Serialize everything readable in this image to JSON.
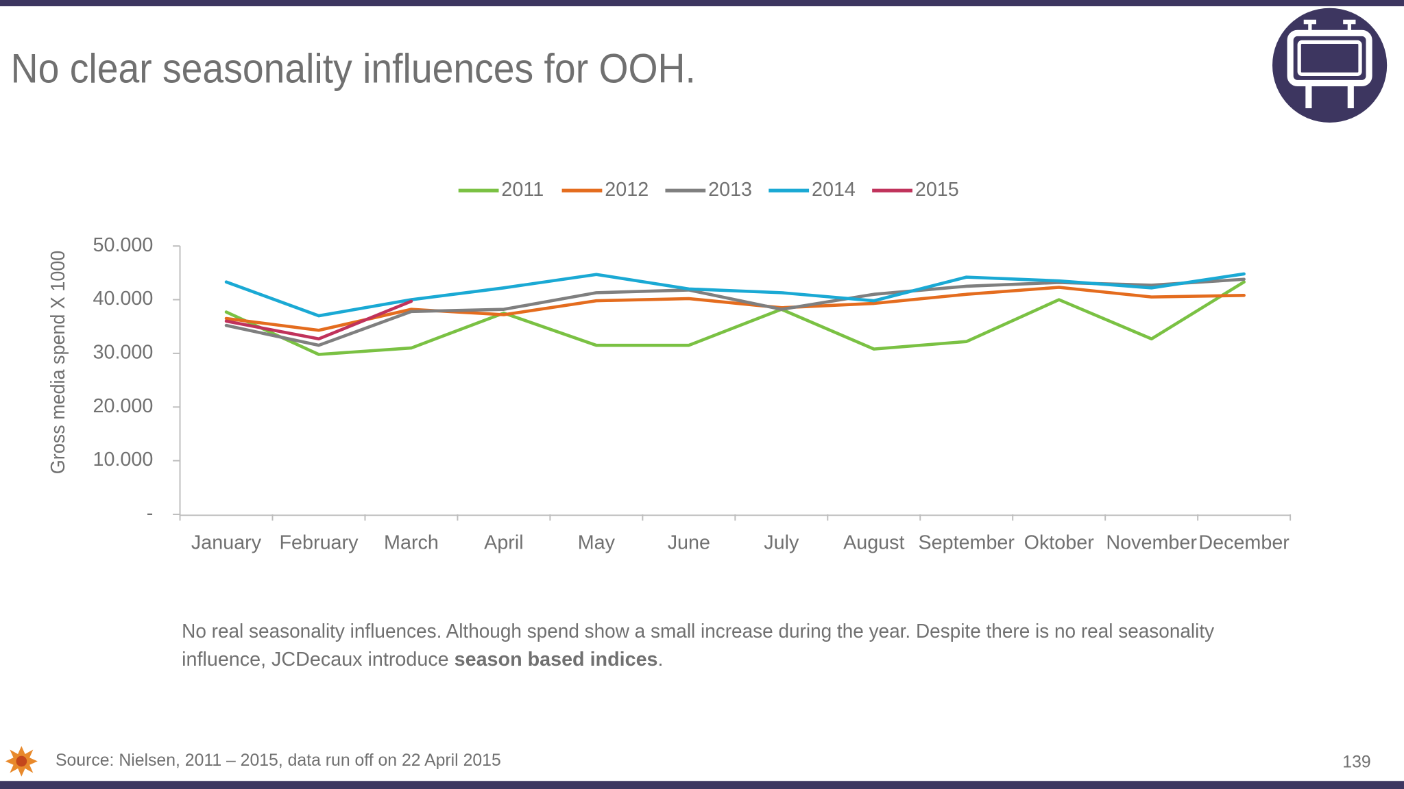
{
  "slide": {
    "title": "No clear seasonality influences for OOH.",
    "note": {
      "line1": "No real seasonality influences. Although spend show a small increase during the year. Despite there is no real seasonality",
      "line2_start": "influence, JCDecaux introduce ",
      "line2_bold": "season based indices",
      "line2_end": "."
    },
    "source": "Source: Nielsen, 2011 – 2015, data run off on 22 April 2015",
    "page_number": "139"
  },
  "chart_data": {
    "type": "line",
    "y_label": "Gross media spend X 1000",
    "categories": [
      "January",
      "February",
      "March",
      "April",
      "May",
      "June",
      "July",
      "August",
      "September",
      "Oktober",
      "November",
      "December"
    ],
    "series": [
      {
        "name": "2011",
        "color": "#7ac143",
        "values": [
          37700,
          29800,
          31000,
          37500,
          31500,
          31500,
          38200,
          30800,
          32200,
          40000,
          32700,
          43300
        ]
      },
      {
        "name": "2012",
        "color": "#e46c1e",
        "values": [
          36500,
          34300,
          38200,
          37200,
          39800,
          40200,
          38500,
          39300,
          41000,
          42300,
          40500,
          40800
        ]
      },
      {
        "name": "2013",
        "color": "#7f7f7f",
        "values": [
          35200,
          31500,
          37800,
          38200,
          41300,
          41800,
          38200,
          41000,
          42500,
          43200,
          42700,
          43800
        ]
      },
      {
        "name": "2014",
        "color": "#1aa9d4",
        "values": [
          43300,
          37000,
          40000,
          42200,
          44700,
          42000,
          41300,
          39800,
          44200,
          43500,
          42200,
          44800
        ]
      },
      {
        "name": "2015",
        "color": "#c0325b",
        "values": [
          36000,
          32700,
          39700,
          null,
          null,
          null,
          null,
          null,
          null,
          null,
          null,
          null
        ]
      }
    ],
    "ylim": [
      0,
      50000
    ],
    "yticks": [
      {
        "value": 0,
        "label": "-"
      },
      {
        "value": 10000,
        "label": "10.000"
      },
      {
        "value": 20000,
        "label": "20.000"
      },
      {
        "value": 30000,
        "label": "30.000"
      },
      {
        "value": 40000,
        "label": "40.000"
      },
      {
        "value": 50000,
        "label": "50.000"
      }
    ],
    "legend": "top",
    "grid": false
  }
}
